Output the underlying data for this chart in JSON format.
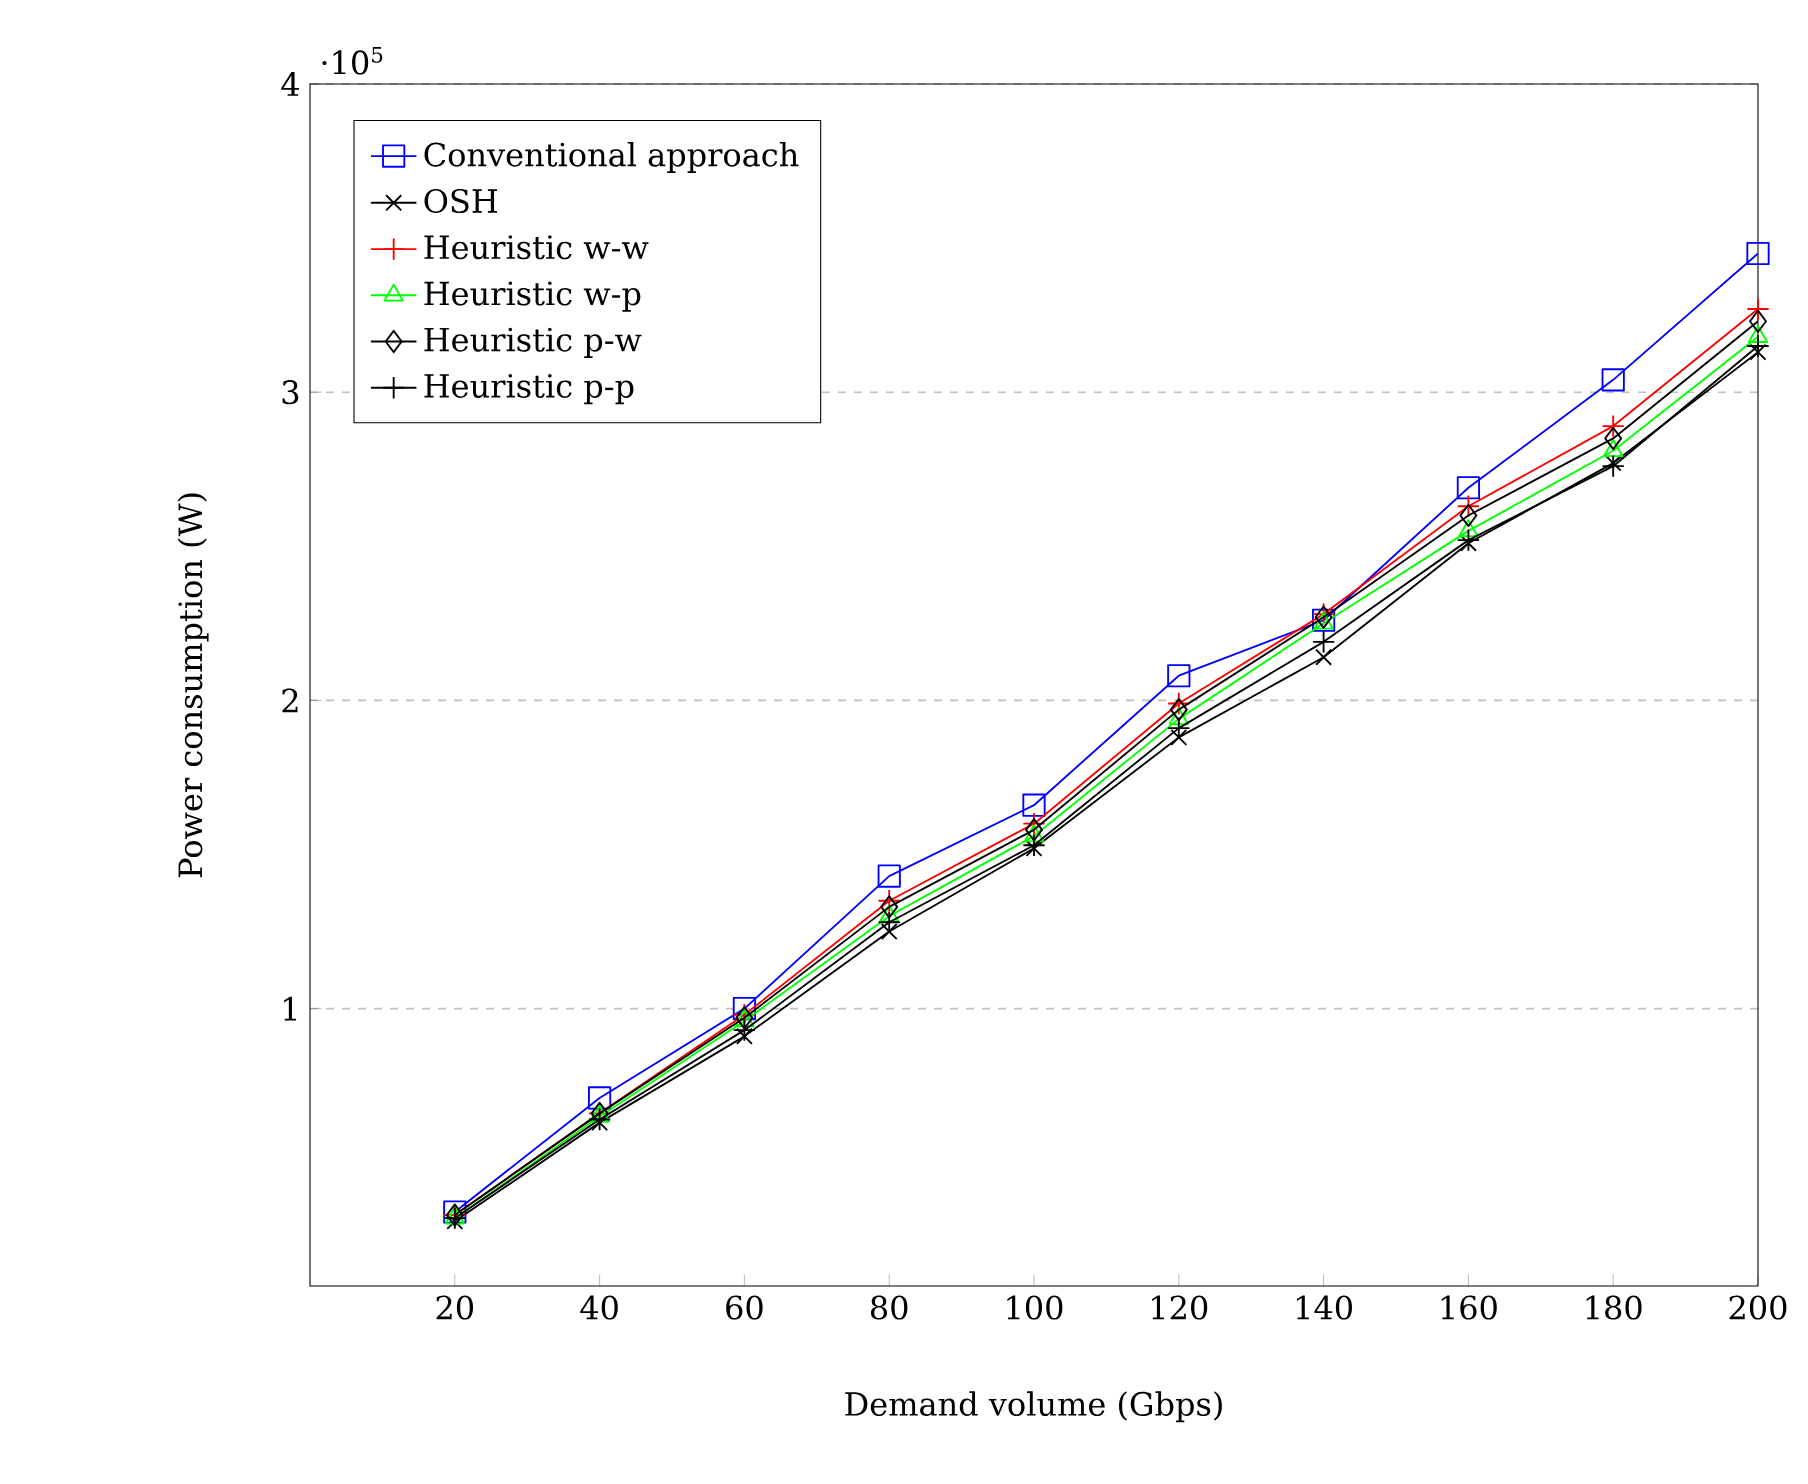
{
  "chart_data": {
    "type": "line",
    "xlabel": "Demand volume (Gbps)",
    "ylabel": "Power consumption (W)",
    "x": [
      20,
      40,
      60,
      80,
      100,
      120,
      140,
      160,
      180,
      200
    ],
    "xlim": [
      0,
      200
    ],
    "xticks": [
      20,
      40,
      60,
      80,
      100,
      120,
      140,
      160,
      180,
      200
    ],
    "ylim": [
      0.1,
      4
    ],
    "yticks": [
      1,
      2,
      3,
      4
    ],
    "annotations": [
      "·10$^{5}$"
    ],
    "grid": "y",
    "legend": "top left",
    "line_style": "solid",
    "series": [
      {
        "name": "Conventional approach",
        "color": "#0000ff",
        "marker": "square",
        "values": [
          0.34,
          0.71,
          1.0,
          1.43,
          1.66,
          2.08,
          2.26,
          2.69,
          3.04,
          3.45
        ]
      },
      {
        "name": "OSH",
        "color": "#000000",
        "marker": "cross",
        "values": [
          0.31,
          0.63,
          0.91,
          1.25,
          1.52,
          1.88,
          2.14,
          2.51,
          2.77,
          3.13
        ]
      },
      {
        "name": "Heuristic w-w",
        "color": "#ff0000",
        "marker": "plus",
        "values": [
          0.33,
          0.66,
          0.98,
          1.35,
          1.6,
          1.99,
          2.28,
          2.63,
          2.89,
          3.27
        ]
      },
      {
        "name": "Heuristic w-p",
        "color": "#00ff00",
        "marker": "triangle",
        "values": [
          0.32,
          0.65,
          0.96,
          1.3,
          1.56,
          1.94,
          2.25,
          2.55,
          2.81,
          3.18
        ]
      },
      {
        "name": "Heuristic p-w",
        "color": "#000000",
        "marker": "diamond",
        "values": [
          0.33,
          0.66,
          0.97,
          1.33,
          1.58,
          1.97,
          2.27,
          2.6,
          2.85,
          3.23
        ]
      },
      {
        "name": "Heuristic p-p",
        "color": "#000000",
        "marker": "plus",
        "values": [
          0.32,
          0.64,
          0.93,
          1.28,
          1.53,
          1.91,
          2.19,
          2.52,
          2.76,
          3.15
        ]
      }
    ]
  }
}
